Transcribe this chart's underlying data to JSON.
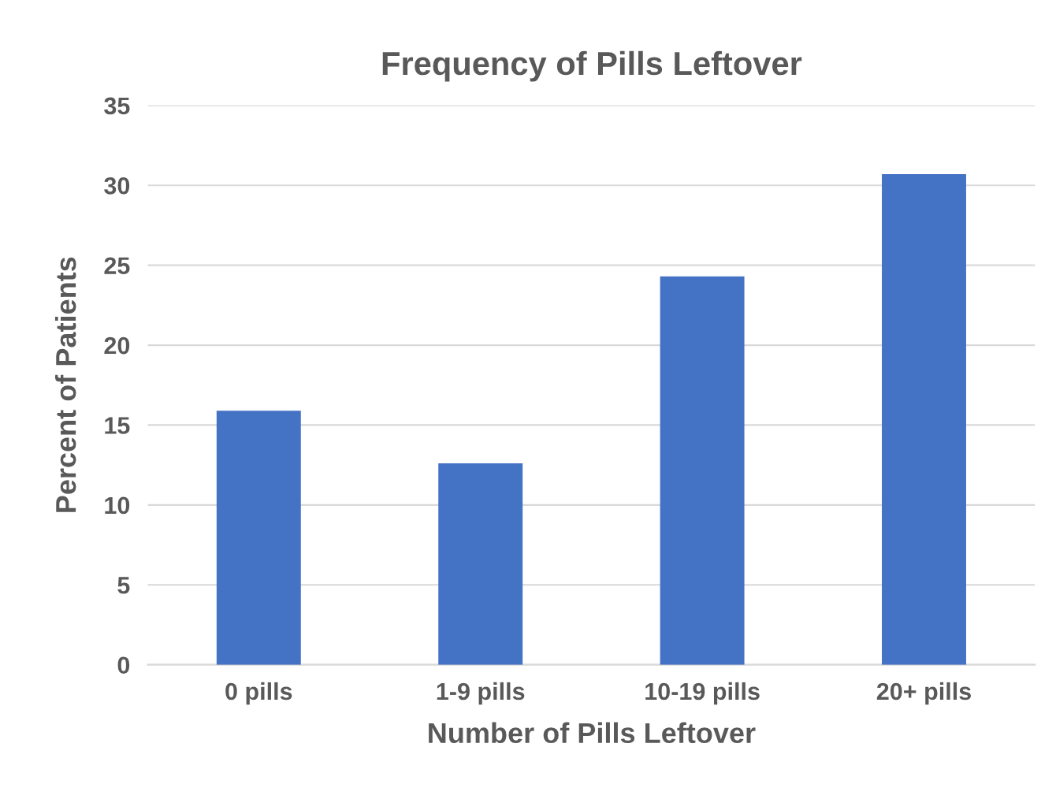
{
  "chart_data": {
    "type": "bar",
    "title": "Frequency of Pills Leftover",
    "xlabel": "Number of Pills Leftover",
    "ylabel": "Percent of Patients",
    "categories": [
      "0 pills",
      "1-9 pills",
      "10-19 pills",
      "20+ pills"
    ],
    "values": [
      15.9,
      12.6,
      24.3,
      30.7
    ],
    "color": "#4472c4",
    "ylim": [
      0,
      35
    ],
    "yticks": [
      0,
      5,
      10,
      15,
      20,
      25,
      30,
      35
    ],
    "grid": "y"
  }
}
